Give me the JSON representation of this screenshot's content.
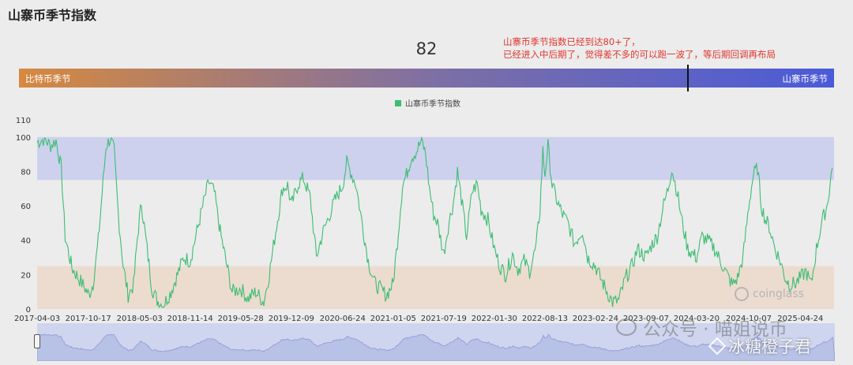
{
  "page": {
    "title": "山寨币季节指数",
    "current_value": "82",
    "note_line1": "山寨币季节指数已经到达80+了，",
    "note_line2": "已经进入中后期了，觉得差不多的可以跑一波了，等后期回调再布局"
  },
  "season_bar": {
    "left_label": "比特币季节",
    "right_label": "山寨币季节",
    "gradient_start": "#d6893f",
    "gradient_mid": "#7c6fa6",
    "gradient_end": "#4a5ad8",
    "marker_value": 82
  },
  "watermarks": {
    "coinglass": "coinglass",
    "wechat": "公众号 · 喵姐说币",
    "binance": "冰糖橙子君"
  },
  "colors": {
    "line": "#3dbd73",
    "altcoin_zone": "#cdd1ee",
    "bitcoin_zone": "#ecdcd0",
    "background": "#ececec",
    "navigator": "#cfd5ee",
    "note": "#e0362e"
  },
  "chart_data": {
    "type": "line",
    "legend": [
      "山寨币季节指数"
    ],
    "ylim": [
      0,
      110
    ],
    "yticks": [
      0,
      20,
      40,
      60,
      80,
      100,
      110
    ],
    "bands": [
      {
        "from": 75,
        "to": 100,
        "color": "#cdd1ee"
      },
      {
        "from": 0,
        "to": 25,
        "color": "#ecdcd0"
      }
    ],
    "xticks": [
      "2017-04-03",
      "2017-10-17",
      "2018-05-03",
      "2018-11-14",
      "2019-05-28",
      "2019-12-09",
      "2020-06-24",
      "2021-01-05",
      "2021-07-19",
      "2022-01-30",
      "2022-08-13",
      "2023-02-24",
      "2023-09-07",
      "2024-03-20",
      "2024-10-07",
      "2025-04-24"
    ],
    "x_start": "2017-04-03",
    "x_end": "2025-09-01",
    "series": [
      {
        "name": "山寨币季节指数",
        "points": [
          [
            "2017-04-03",
            97
          ],
          [
            "2017-05-01",
            99
          ],
          [
            "2017-05-25",
            95
          ],
          [
            "2017-06-15",
            98
          ],
          [
            "2017-07-05",
            82
          ],
          [
            "2017-07-20",
            42
          ],
          [
            "2017-08-15",
            24
          ],
          [
            "2017-09-10",
            18
          ],
          [
            "2017-10-05",
            12
          ],
          [
            "2017-10-20",
            8
          ],
          [
            "2017-11-05",
            15
          ],
          [
            "2017-11-25",
            40
          ],
          [
            "2017-12-10",
            68
          ],
          [
            "2017-12-25",
            95
          ],
          [
            "2018-01-10",
            99
          ],
          [
            "2018-01-25",
            92
          ],
          [
            "2018-02-10",
            55
          ],
          [
            "2018-03-01",
            25
          ],
          [
            "2018-03-20",
            8
          ],
          [
            "2018-04-10",
            14
          ],
          [
            "2018-04-25",
            42
          ],
          [
            "2018-05-10",
            62
          ],
          [
            "2018-06-01",
            35
          ],
          [
            "2018-06-20",
            12
          ],
          [
            "2018-07-10",
            5
          ],
          [
            "2018-08-01",
            2
          ],
          [
            "2018-09-01",
            10
          ],
          [
            "2018-10-01",
            22
          ],
          [
            "2018-10-20",
            30
          ],
          [
            "2018-11-14",
            28
          ],
          [
            "2018-12-10",
            45
          ],
          [
            "2019-01-05",
            62
          ],
          [
            "2019-01-25",
            74
          ],
          [
            "2019-02-15",
            68
          ],
          [
            "2019-03-10",
            45
          ],
          [
            "2019-04-05",
            25
          ],
          [
            "2019-04-25",
            10
          ],
          [
            "2019-05-28",
            12
          ],
          [
            "2019-06-25",
            6
          ],
          [
            "2019-07-25",
            10
          ],
          [
            "2019-08-25",
            4
          ],
          [
            "2019-09-15",
            20
          ],
          [
            "2019-10-10",
            45
          ],
          [
            "2019-11-05",
            70
          ],
          [
            "2019-11-25",
            72
          ],
          [
            "2019-12-09",
            60
          ],
          [
            "2020-01-05",
            73
          ],
          [
            "2020-01-25",
            76
          ],
          [
            "2020-02-20",
            65
          ],
          [
            "2020-03-15",
            30
          ],
          [
            "2020-04-10",
            45
          ],
          [
            "2020-05-05",
            55
          ],
          [
            "2020-05-25",
            63
          ],
          [
            "2020-06-24",
            72
          ],
          [
            "2020-07-10",
            85
          ],
          [
            "2020-07-25",
            80
          ],
          [
            "2020-08-15",
            72
          ],
          [
            "2020-09-05",
            52
          ],
          [
            "2020-10-01",
            28
          ],
          [
            "2020-10-25",
            15
          ],
          [
            "2020-11-15",
            12
          ],
          [
            "2020-12-10",
            8
          ],
          [
            "2021-01-05",
            15
          ],
          [
            "2021-01-25",
            45
          ],
          [
            "2021-02-10",
            72
          ],
          [
            "2021-02-25",
            78
          ],
          [
            "2021-03-15",
            88
          ],
          [
            "2021-04-05",
            92
          ],
          [
            "2021-04-25",
            98
          ],
          [
            "2021-05-10",
            90
          ],
          [
            "2021-05-25",
            70
          ],
          [
            "2021-06-10",
            55
          ],
          [
            "2021-06-25",
            50
          ],
          [
            "2021-07-19",
            32
          ],
          [
            "2021-08-05",
            48
          ],
          [
            "2021-08-25",
            62
          ],
          [
            "2021-09-10",
            80
          ],
          [
            "2021-09-25",
            64
          ],
          [
            "2021-10-15",
            42
          ],
          [
            "2021-11-05",
            68
          ],
          [
            "2021-11-25",
            73
          ],
          [
            "2021-12-10",
            58
          ],
          [
            "2022-01-05",
            52
          ],
          [
            "2022-01-30",
            35
          ],
          [
            "2022-02-20",
            25
          ],
          [
            "2022-03-15",
            20
          ],
          [
            "2022-04-10",
            32
          ],
          [
            "2022-05-01",
            23
          ],
          [
            "2022-05-25",
            28
          ],
          [
            "2022-06-15",
            22
          ],
          [
            "2022-07-10",
            36
          ],
          [
            "2022-07-25",
            58
          ],
          [
            "2022-08-05",
            92
          ],
          [
            "2022-08-13",
            78
          ],
          [
            "2022-08-25",
            95
          ],
          [
            "2022-09-10",
            72
          ],
          [
            "2022-10-01",
            62
          ],
          [
            "2022-10-20",
            55
          ],
          [
            "2022-11-10",
            50
          ],
          [
            "2022-12-05",
            38
          ],
          [
            "2023-01-05",
            46
          ],
          [
            "2023-01-25",
            30
          ],
          [
            "2023-02-24",
            25
          ],
          [
            "2023-03-15",
            18
          ],
          [
            "2023-04-10",
            10
          ],
          [
            "2023-05-01",
            4
          ],
          [
            "2023-05-25",
            5
          ],
          [
            "2023-06-20",
            18
          ],
          [
            "2023-07-15",
            25
          ],
          [
            "2023-08-05",
            35
          ],
          [
            "2023-09-07",
            30
          ],
          [
            "2023-10-01",
            38
          ],
          [
            "2023-10-20",
            42
          ],
          [
            "2023-11-10",
            58
          ],
          [
            "2023-12-01",
            70
          ],
          [
            "2023-12-15",
            82
          ],
          [
            "2024-01-05",
            68
          ],
          [
            "2024-01-25",
            50
          ],
          [
            "2024-02-15",
            35
          ],
          [
            "2024-03-20",
            30
          ],
          [
            "2024-04-10",
            42
          ],
          [
            "2024-05-01",
            40
          ],
          [
            "2024-05-25",
            36
          ],
          [
            "2024-06-20",
            28
          ],
          [
            "2024-07-15",
            20
          ],
          [
            "2024-08-05",
            14
          ],
          [
            "2024-08-25",
            18
          ],
          [
            "2024-09-15",
            30
          ],
          [
            "2024-10-07",
            60
          ],
          [
            "2024-10-25",
            78
          ],
          [
            "2024-11-10",
            82
          ],
          [
            "2024-11-25",
            60
          ],
          [
            "2024-12-10",
            52
          ],
          [
            "2024-12-25",
            48
          ],
          [
            "2025-01-15",
            36
          ],
          [
            "2025-02-05",
            28
          ],
          [
            "2025-02-25",
            18
          ],
          [
            "2025-03-15",
            14
          ],
          [
            "2025-04-05",
            15
          ],
          [
            "2025-04-24",
            18
          ],
          [
            "2025-05-15",
            22
          ],
          [
            "2025-06-05",
            14
          ],
          [
            "2025-06-25",
            35
          ],
          [
            "2025-07-15",
            50
          ],
          [
            "2025-08-05",
            60
          ],
          [
            "2025-08-25",
            82
          ]
        ]
      }
    ]
  }
}
